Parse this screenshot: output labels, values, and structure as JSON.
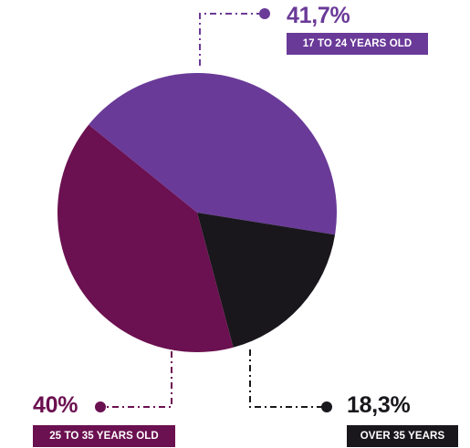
{
  "chart_data": {
    "type": "pie",
    "slices": [
      {
        "key": "young",
        "value": 41.7,
        "value_label": "41,7%",
        "label": "17 TO 24 YEARS OLD",
        "color": "#6a3a98"
      },
      {
        "key": "old",
        "value": 18.3,
        "value_label": "18,3%",
        "label": "OVER 35 YEARS",
        "color": "#19171c"
      },
      {
        "key": "mid",
        "value": 40,
        "value_label": "40%",
        "label": "25 TO 35 YEARS OLD",
        "color": "#6b1050"
      }
    ],
    "title": "",
    "legend": "callouts"
  }
}
